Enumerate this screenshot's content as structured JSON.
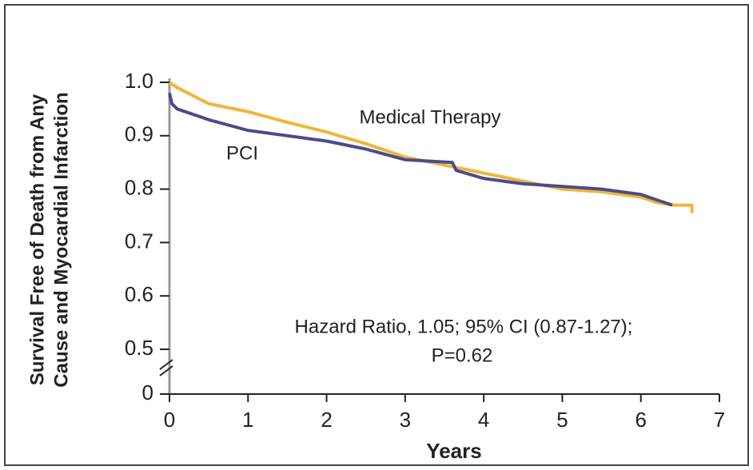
{
  "chart_data": {
    "type": "line",
    "y_label": [
      "Survival Free of Death from Any",
      "Cause and Myocardial Infarction"
    ],
    "x_label": "Years",
    "xlim": [
      0,
      7
    ],
    "xticks": [
      0,
      1,
      2,
      3,
      4,
      5,
      6,
      7
    ],
    "ylim": [
      0,
      1
    ],
    "y_break": [
      0,
      0.5
    ],
    "yticks": [
      0,
      0.5,
      0.6,
      0.7,
      0.8,
      0.9,
      {
        "value": 1,
        "label": "1.0"
      }
    ],
    "series": [
      {
        "name": "Medical Therapy",
        "color": "#f0b53a",
        "x": [
          0,
          0.1,
          0.3,
          0.5,
          1,
          1.5,
          2,
          2.5,
          3,
          3.5,
          4,
          4.5,
          5,
          5.5,
          6,
          6.2,
          6.4,
          6.65,
          6.65
        ],
        "values": [
          1.0,
          0.99,
          0.975,
          0.96,
          0.945,
          0.925,
          0.907,
          0.885,
          0.86,
          0.845,
          0.83,
          0.815,
          0.8,
          0.795,
          0.785,
          0.775,
          0.77,
          0.77,
          0.755
        ]
      },
      {
        "name": "PCI",
        "color": "#4b4b8c",
        "x": [
          0,
          0.03,
          0.1,
          0.3,
          0.5,
          1,
          1.5,
          2,
          2.5,
          3,
          3.6,
          3.65,
          4,
          4.5,
          5,
          5.5,
          6,
          6.2,
          6.4
        ],
        "values": [
          0.98,
          0.96,
          0.95,
          0.94,
          0.93,
          0.91,
          0.9,
          0.89,
          0.875,
          0.855,
          0.85,
          0.835,
          0.82,
          0.81,
          0.805,
          0.8,
          0.79,
          0.78,
          0.77
        ]
      }
    ],
    "annotations": [
      "Hazard Ratio, 1.05; 95% CI (0.87-1.27);",
      "P=0.62"
    ]
  }
}
